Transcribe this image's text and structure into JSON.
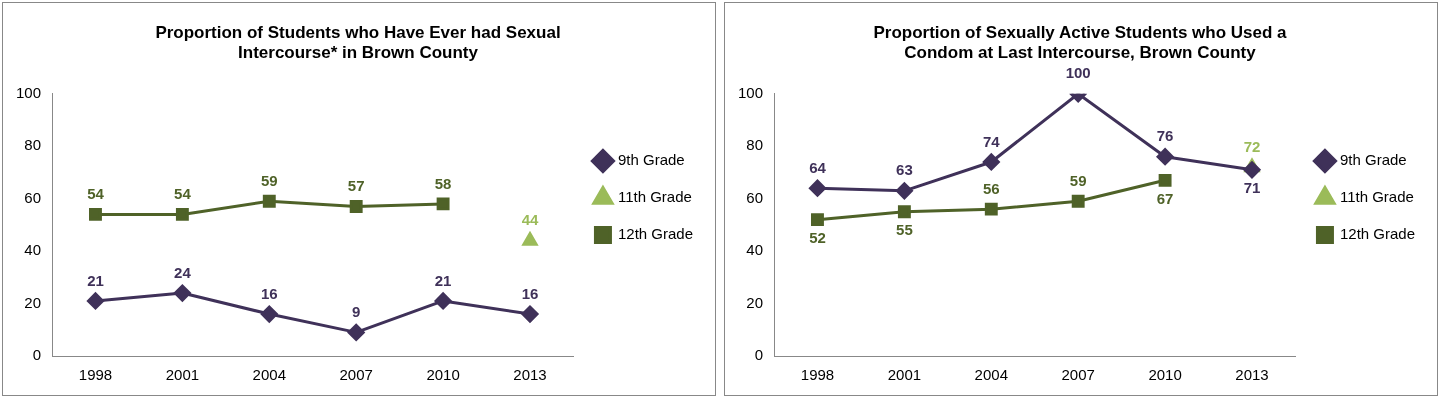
{
  "chart_data": [
    {
      "type": "line",
      "title": "Proportion of Students who Have Ever had Sexual Intercourse* in Brown County",
      "categories": [
        "1998",
        "2001",
        "2004",
        "2007",
        "2010",
        "2013"
      ],
      "series": [
        {
          "name": "9th Grade",
          "color": "#3f3159",
          "marker": "diamond",
          "values": [
            21,
            24,
            16,
            9,
            21,
            16
          ]
        },
        {
          "name": "11th Grade",
          "color": "#9bbb59",
          "marker": "triangle",
          "values": [
            null,
            null,
            null,
            null,
            null,
            44
          ]
        },
        {
          "name": "12th Grade",
          "color": "#4f6228",
          "marker": "square",
          "values": [
            54,
            54,
            59,
            57,
            58,
            null
          ]
        }
      ],
      "ylim": [
        0,
        100
      ],
      "yticks": [
        0,
        20,
        40,
        60,
        80,
        100
      ],
      "grid": false,
      "legend": "right",
      "data_labels": true
    },
    {
      "type": "line",
      "title": "Proportion of Sexually Active Students who Used a Condom at Last Intercourse, Brown County",
      "categories": [
        "1998",
        "2001",
        "2004",
        "2007",
        "2010",
        "2013"
      ],
      "series": [
        {
          "name": "9th Grade",
          "color": "#3f3159",
          "marker": "diamond",
          "values": [
            64,
            63,
            74,
            100,
            76,
            71
          ]
        },
        {
          "name": "11th Grade",
          "color": "#9bbb59",
          "marker": "triangle",
          "values": [
            null,
            null,
            null,
            null,
            null,
            72
          ]
        },
        {
          "name": "12th Grade",
          "color": "#4f6228",
          "marker": "square",
          "values": [
            52,
            55,
            56,
            59,
            67,
            null
          ]
        }
      ],
      "ylim": [
        0,
        100
      ],
      "yticks": [
        0,
        20,
        40,
        60,
        80,
        100
      ],
      "grid": false,
      "legend": "right",
      "data_labels": true
    }
  ]
}
